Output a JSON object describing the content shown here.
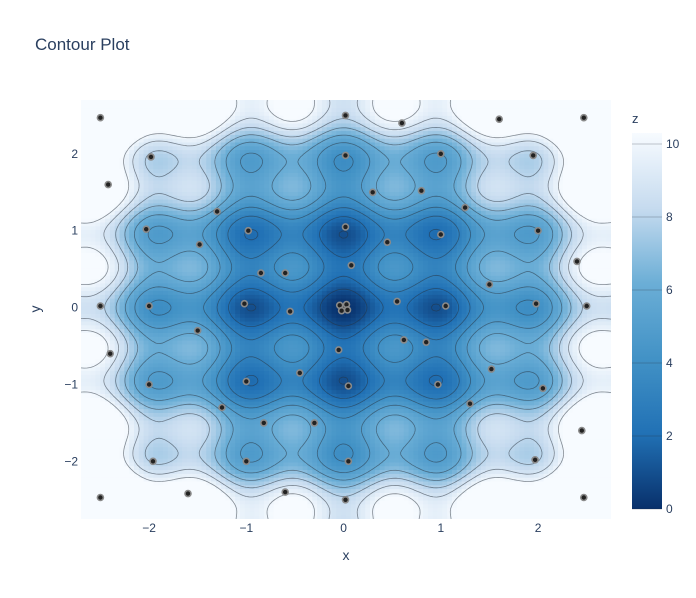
{
  "chart_data": {
    "type": "contour",
    "title": "Contour Plot",
    "xlabel": "x",
    "ylabel": "y",
    "xlim": [
      -2.7,
      2.75
    ],
    "ylim": [
      -2.75,
      2.7
    ],
    "x_ticks": [
      -2,
      -1,
      0,
      1,
      2
    ],
    "x_tick_labels": [
      "−2",
      "−1",
      "0",
      "1",
      "2"
    ],
    "y_ticks": [
      -2,
      -1,
      0,
      1,
      2
    ],
    "y_tick_labels": [
      "−2",
      "−1",
      "0",
      "1",
      "2"
    ],
    "z_function": "z = x^2 + y^2 - cos(2*pi*x) - cos(2*pi*y) + 2 (estimated from plot)",
    "zlim": [
      0,
      10.3
    ],
    "contour_step": 1,
    "colorscale": [
      [
        0.0,
        "#08306b"
      ],
      [
        0.2,
        "#2171b5"
      ],
      [
        0.4,
        "#4292c6"
      ],
      [
        0.6,
        "#6baed6"
      ],
      [
        0.8,
        "#c6dbef"
      ],
      [
        1.0,
        "#f7fbff"
      ]
    ],
    "colorbar": {
      "title": "z",
      "ticks": [
        0,
        2,
        4,
        6,
        8,
        10
      ],
      "tick_labels": [
        "0",
        "2",
        "4",
        "6",
        "8",
        "10"
      ]
    },
    "scatter": {
      "marker_fill": "#222222",
      "marker_line": "#8a8a8a",
      "points": [
        [
          0,
          0
        ],
        [
          0.03,
          0.04
        ],
        [
          -0.04,
          0.03
        ],
        [
          0.04,
          -0.03
        ],
        [
          -0.02,
          -0.04
        ],
        [
          0.55,
          0.08
        ],
        [
          -0.55,
          -0.05
        ],
        [
          0.08,
          0.55
        ],
        [
          -0.05,
          -0.55
        ],
        [
          0.62,
          -0.42
        ],
        [
          -0.6,
          0.45
        ],
        [
          1.05,
          0.02
        ],
        [
          -1.02,
          0.05
        ],
        [
          0.02,
          1.05
        ],
        [
          0.05,
          -1.02
        ],
        [
          1.0,
          0.95
        ],
        [
          -0.98,
          1.0
        ],
        [
          0.97,
          -1.0
        ],
        [
          -1.0,
          -0.96
        ],
        [
          1.5,
          0.3
        ],
        [
          -1.5,
          -0.3
        ],
        [
          0.3,
          1.5
        ],
        [
          -0.3,
          -1.5
        ],
        [
          1.52,
          -0.8
        ],
        [
          -1.48,
          0.82
        ],
        [
          0.8,
          1.52
        ],
        [
          -0.82,
          -1.5
        ],
        [
          1.98,
          0.05
        ],
        [
          -2.0,
          0.02
        ],
        [
          0.02,
          1.98
        ],
        [
          0.05,
          -2.0
        ],
        [
          2.0,
          1.0
        ],
        [
          -2.0,
          -1.0
        ],
        [
          1.0,
          2.0
        ],
        [
          -1.0,
          -2.0
        ],
        [
          2.05,
          -1.05
        ],
        [
          -2.03,
          1.02
        ],
        [
          1.95,
          1.98
        ],
        [
          -1.98,
          1.96
        ],
        [
          1.97,
          -1.98
        ],
        [
          -1.96,
          -2.0
        ],
        [
          2.4,
          0.6
        ],
        [
          -2.4,
          -0.6
        ],
        [
          0.6,
          2.4
        ],
        [
          -0.6,
          -2.4
        ],
        [
          2.45,
          -1.6
        ],
        [
          -2.42,
          1.6
        ],
        [
          1.6,
          2.45
        ],
        [
          -1.6,
          -2.42
        ],
        [
          2.47,
          2.47
        ],
        [
          -2.5,
          2.47
        ],
        [
          2.47,
          -2.47
        ],
        [
          -2.5,
          -2.47
        ],
        [
          0.02,
          2.5
        ],
        [
          2.5,
          0.02
        ],
        [
          -2.5,
          0.02
        ],
        [
          0.02,
          -2.5
        ],
        [
          1.25,
          1.3
        ],
        [
          -1.25,
          -1.3
        ],
        [
          1.3,
          -1.25
        ],
        [
          -1.3,
          1.25
        ],
        [
          0.45,
          0.85
        ],
        [
          -0.45,
          -0.85
        ],
        [
          0.85,
          -0.45
        ],
        [
          -0.85,
          0.45
        ]
      ]
    }
  }
}
